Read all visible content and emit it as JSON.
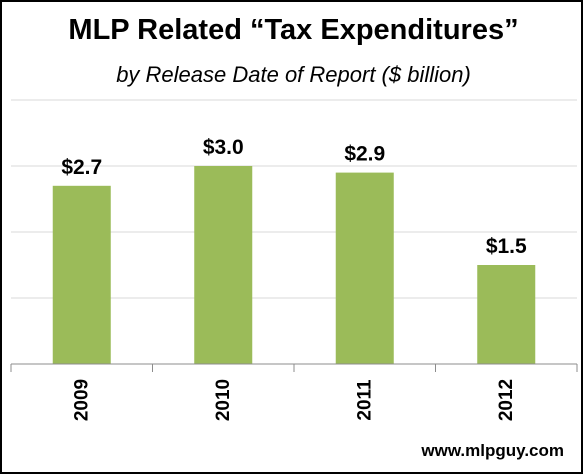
{
  "chart_data": {
    "type": "bar",
    "title": "MLP Related “Tax Expenditures”",
    "subtitle": "by Release Date of Report ($ billion)",
    "categories": [
      "2009",
      "2010",
      "2011",
      "2012"
    ],
    "values": [
      2.7,
      3.0,
      2.9,
      1.5
    ],
    "data_labels": [
      "$2.7",
      "$3.0",
      "$2.9",
      "$1.5"
    ],
    "xlabel": "",
    "ylabel": "",
    "ylim": [
      0,
      4
    ],
    "y_ticks_shown": false,
    "grid": true,
    "legend": "none",
    "bar_color": "#9BBB59",
    "source": "www.mlpguy.com"
  }
}
